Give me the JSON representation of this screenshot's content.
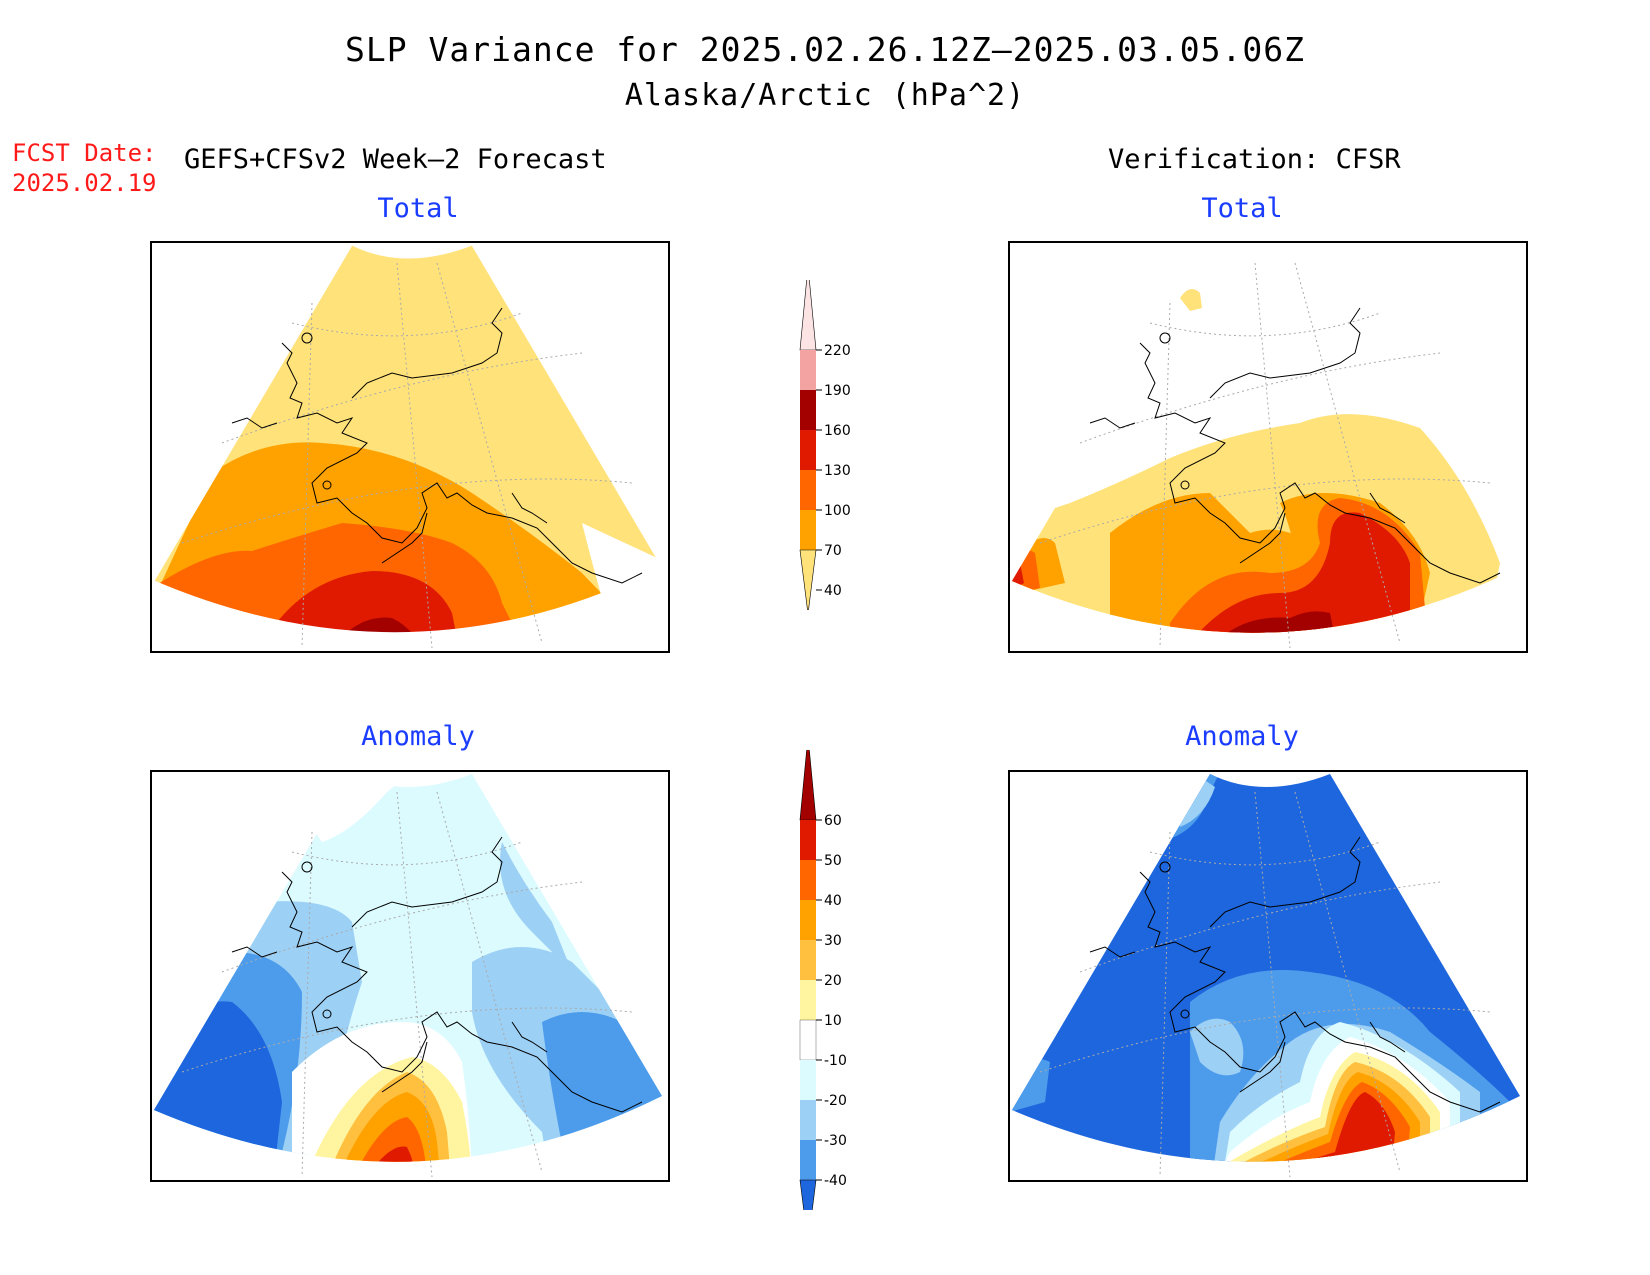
{
  "header": {
    "title_line1": "SLP Variance for 2025.02.26.12Z–2025.03.05.06Z",
    "title_line2": "Alaska/Arctic (hPa^2)",
    "fcst_label": "FCST Date:",
    "fcst_date": "2025.02.19",
    "left_column_title": "GEFS+CFSv2 Week–2 Forecast",
    "right_column_title": "Verification: CFSR"
  },
  "panels": {
    "forecast_total": {
      "title": "Total"
    },
    "verification_total": {
      "title": "Total"
    },
    "forecast_anomaly": {
      "title": "Anomaly"
    },
    "verification_anomaly": {
      "title": "Anomaly"
    }
  },
  "colorbars": {
    "total": {
      "labels": [
        "220",
        "190",
        "160",
        "130",
        "100",
        "70",
        "40"
      ],
      "colors": [
        "#fde4e4",
        "#f4a3a3",
        "#a30000",
        "#e01a00",
        "#ff6600",
        "#ffa200",
        "#ffe27a"
      ]
    },
    "anomaly": {
      "labels": [
        "60",
        "50",
        "40",
        "30",
        "20",
        "10",
        "-10",
        "-20",
        "-30",
        "-40"
      ],
      "colors": [
        "#a30000",
        "#e01a00",
        "#ff6600",
        "#ffa200",
        "#ffc040",
        "#fff5a0",
        "#ffffff",
        "#dcfbff",
        "#9dd0f5",
        "#4d9cec",
        "#1e66dd"
      ]
    }
  },
  "colors": {
    "fcst_date": "#ff1a1a",
    "panel_title": "#1a3cff"
  }
}
